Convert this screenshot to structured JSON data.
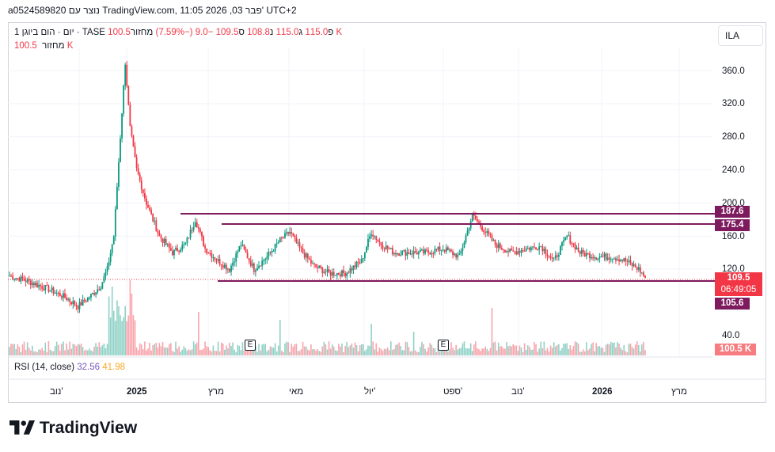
{
  "header": {
    "topline": "a0524589820 נוצר עם TradingView.com, 11:05 2026 ,03 פבר' UTC+2"
  },
  "legend": {
    "symbol": "1 יום · הום ביוגן · TASE",
    "open_label": "פ",
    "open": "115.0",
    "high_label": "ג",
    "high": "115.0",
    "low_label": "נ",
    "low": "108.8",
    "close_label": "ס",
    "close": "109.5",
    "change": "−9.0 (−7.59%)",
    "volume_label": "מחזור",
    "volume": "100.5 K",
    "volume_row_label": "מחזור",
    "volume_row_value": "100.5 K"
  },
  "symbol_button": "ILA",
  "y_axis": {
    "ticks": [
      "360.0",
      "320.0",
      "280.0",
      "240.0",
      "200.0",
      "160.0",
      "120.0",
      "40.0"
    ]
  },
  "badges": {
    "line_top": "187.6",
    "line_mid": "175.4",
    "price": "109.5",
    "countdown": "06:49:05",
    "line_low": "105.6",
    "volume": "100.5 K"
  },
  "colors": {
    "up": "#089981",
    "down": "#f23645",
    "hline": "#7e1a5e",
    "rsi": "#7e57c2",
    "rsi_ma": "#fbc02d"
  },
  "earnings_markers": [
    "E",
    "E"
  ],
  "rsi": {
    "label": "RSI (14, close)",
    "value": "32.56",
    "ma": "41.98"
  },
  "x_axis": {
    "ticks": [
      "נוב'",
      "2025",
      "מרץ",
      "מאי",
      "יול'",
      "ספט'",
      "נוב'",
      "2026",
      "מרץ"
    ]
  },
  "brand": "TradingView",
  "chart_data": {
    "type": "candlestick",
    "y_scale": {
      "min": 40,
      "max": 380
    },
    "horizontal_lines": [
      187.6,
      175.4,
      105.6
    ],
    "last_price": 109.5,
    "anchors": [
      [
        0,
        112
      ],
      [
        12,
        105
      ],
      [
        25,
        95
      ],
      [
        35,
        85
      ],
      [
        42,
        75
      ],
      [
        50,
        88
      ],
      [
        56,
        100
      ],
      [
        60,
        120
      ],
      [
        64,
        160
      ],
      [
        68,
        280
      ],
      [
        71,
        370
      ],
      [
        74,
        290
      ],
      [
        78,
        240
      ],
      [
        84,
        200
      ],
      [
        92,
        160
      ],
      [
        100,
        140
      ],
      [
        108,
        150
      ],
      [
        114,
        180
      ],
      [
        120,
        145
      ],
      [
        128,
        130
      ],
      [
        135,
        120
      ],
      [
        142,
        150
      ],
      [
        150,
        120
      ],
      [
        158,
        135
      ],
      [
        166,
        155
      ],
      [
        172,
        165
      ],
      [
        178,
        145
      ],
      [
        186,
        125
      ],
      [
        196,
        115
      ],
      [
        206,
        115
      ],
      [
        216,
        130
      ],
      [
        222,
        165
      ],
      [
        228,
        150
      ],
      [
        236,
        140
      ],
      [
        246,
        140
      ],
      [
        256,
        140
      ],
      [
        266,
        145
      ],
      [
        276,
        135
      ],
      [
        284,
        185
      ],
      [
        290,
        170
      ],
      [
        298,
        150
      ],
      [
        308,
        140
      ],
      [
        318,
        145
      ],
      [
        326,
        148
      ],
      [
        334,
        130
      ],
      [
        342,
        160
      ],
      [
        350,
        140
      ],
      [
        360,
        135
      ],
      [
        370,
        135
      ],
      [
        378,
        130
      ],
      [
        386,
        120
      ],
      [
        390,
        110
      ]
    ]
  }
}
